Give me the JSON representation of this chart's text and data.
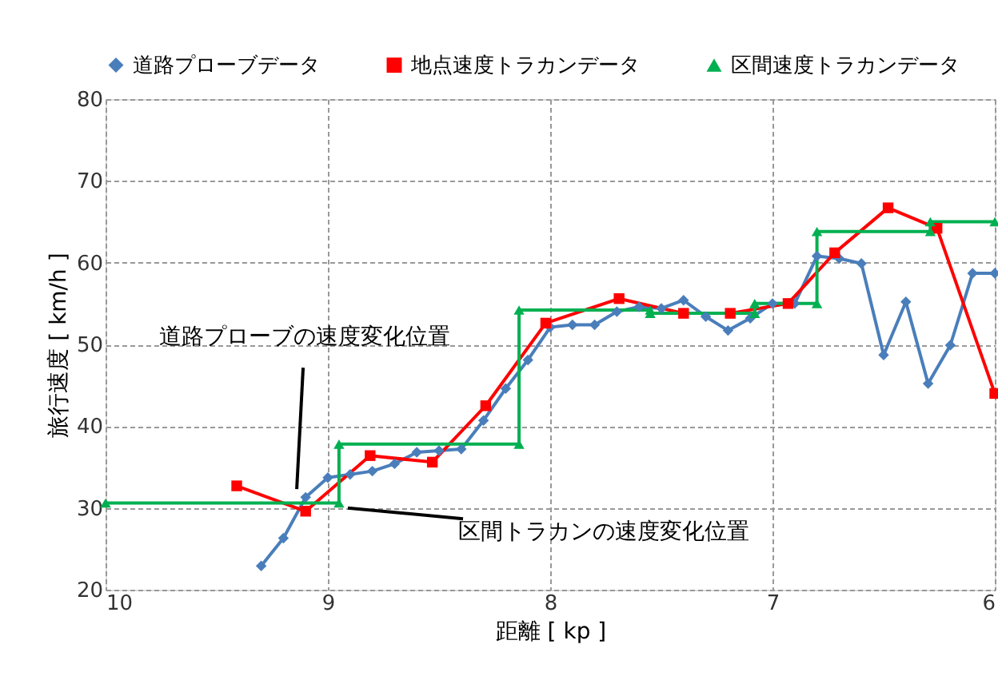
{
  "chart_data": {
    "type": "line",
    "xlabel": "距離 [ kp ]",
    "ylabel": "旅行速度 [ km/h ]",
    "xlim": [
      10,
      6
    ],
    "xticks": [
      {
        "value": 10,
        "label": "10"
      },
      {
        "value": 9,
        "label": "9"
      },
      {
        "value": 8,
        "label": "8"
      },
      {
        "value": 7,
        "label": "7"
      },
      {
        "value": 6,
        "label": "6"
      }
    ],
    "ylim": [
      20,
      80
    ],
    "yticks": [
      20,
      30,
      40,
      50,
      60,
      70,
      80
    ],
    "grid": true,
    "legend": "top",
    "line_style": "solid",
    "series": [
      {
        "name": "道路プローブデータ",
        "color": "#4a7ebb",
        "marker": "diamond",
        "x": [
          9.3,
          9.2,
          9.1,
          9.0,
          8.9,
          8.8,
          8.7,
          8.6,
          8.5,
          8.4,
          8.3,
          8.2,
          8.1,
          8.0,
          7.9,
          7.8,
          7.7,
          7.6,
          7.5,
          7.4,
          7.3,
          7.2,
          7.1,
          7.0,
          6.9,
          6.8,
          6.7,
          6.6,
          6.5,
          6.4,
          6.3,
          6.2,
          6.1,
          6.0
        ],
        "values": [
          22.9,
          26.3,
          31.3,
          33.7,
          34.1,
          34.5,
          35.4,
          36.8,
          37.0,
          37.2,
          40.7,
          44.6,
          48.1,
          52.1,
          52.4,
          52.4,
          54.0,
          54.6,
          54.4,
          55.4,
          53.4,
          51.7,
          53.2,
          55.0,
          55.0,
          60.8,
          60.5,
          59.9,
          48.7,
          55.2,
          45.2,
          49.9,
          58.7,
          58.7
        ]
      },
      {
        "name": "地点速度トラカンデータ",
        "color": "#ff0000",
        "marker": "square",
        "x": [
          9.41,
          9.1,
          8.81,
          8.53,
          8.29,
          8.02,
          7.69,
          7.4,
          7.19,
          6.93,
          6.72,
          6.48,
          6.26,
          6.0
        ],
        "values": [
          32.7,
          29.6,
          36.4,
          35.6,
          42.5,
          52.6,
          55.6,
          53.8,
          53.8,
          55.0,
          61.2,
          66.7,
          64.2,
          44.0
        ]
      },
      {
        "name": "区間速度トラカンデータ",
        "color": "#00b050",
        "marker": "triangle",
        "x": [
          10.0,
          8.95,
          8.95,
          8.14,
          8.14,
          7.55,
          7.55,
          7.08,
          7.08,
          6.8,
          6.8,
          6.29,
          6.29,
          6.0
        ],
        "values": [
          30.6,
          30.6,
          37.8,
          37.8,
          54.2,
          54.2,
          53.8,
          53.8,
          55.0,
          55.0,
          63.8,
          63.8,
          65.0,
          65.0
        ]
      }
    ],
    "annotations": [
      {
        "text": "道路プローブの速度変化位置",
        "x": 9.14,
        "y": 32.3
      },
      {
        "text": "区間トラカンの速度変化位置",
        "x": 8.91,
        "y": 30.0
      }
    ]
  }
}
